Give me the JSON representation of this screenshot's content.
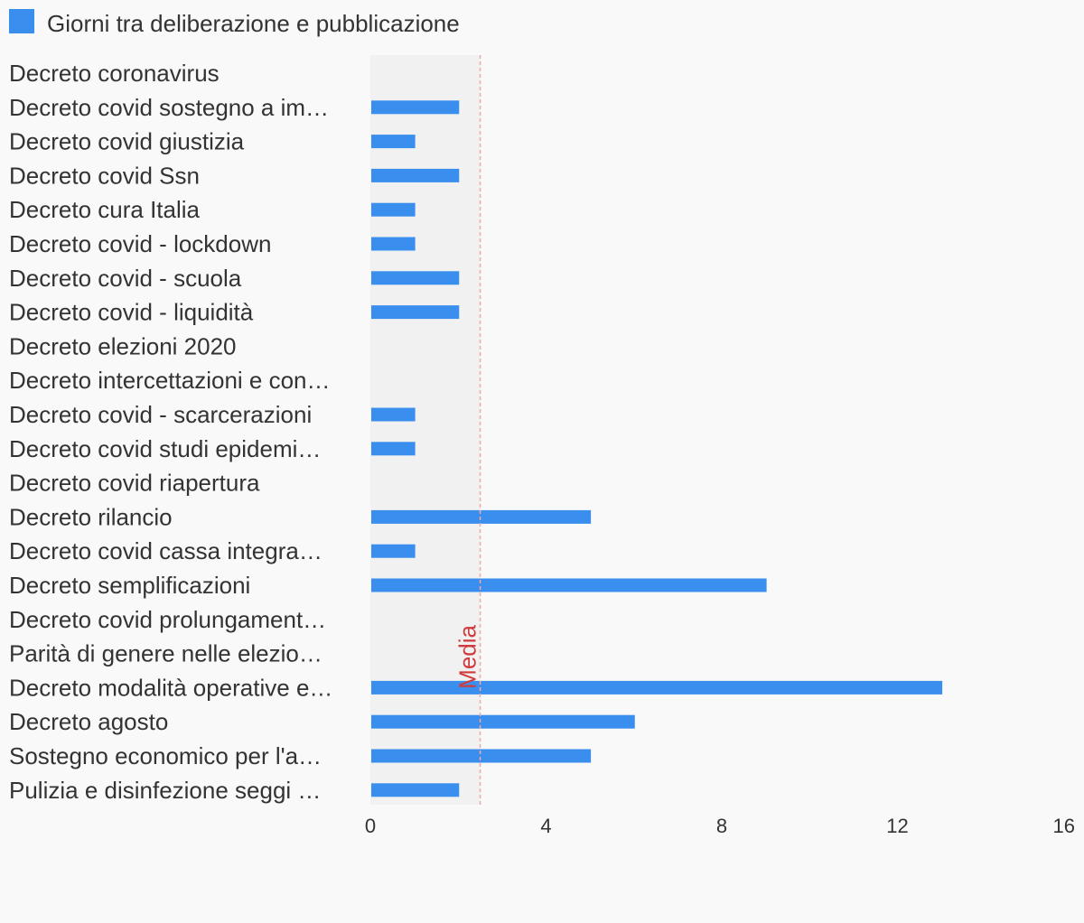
{
  "chart_data": {
    "type": "bar",
    "orientation": "horizontal",
    "categories": [
      "Decreto coronavirus",
      "Decreto covid sostegno a im…",
      "Decreto covid giustizia",
      "Decreto covid Ssn",
      "Decreto cura Italia",
      "Decreto covid - lockdown",
      "Decreto covid - scuola",
      "Decreto covid - liquidità",
      "Decreto elezioni 2020",
      "Decreto intercettazioni e con…",
      "Decreto covid - scarcerazioni",
      "Decreto covid studi epidemi…",
      "Decreto covid riapertura",
      "Decreto rilancio",
      "Decreto covid cassa integra…",
      "Decreto semplificazioni",
      "Decreto covid prolungament…",
      "Parità di genere nelle elezio…",
      "Decreto modalità operative e…",
      "Decreto agosto",
      "Sostegno economico per l'a…",
      "Pulizia e disinfezione seggi …"
    ],
    "series": [
      {
        "name": "Giorni tra deliberazione e pubblicazione",
        "color": "#3a8eed",
        "values": [
          0,
          2,
          1,
          2,
          1,
          1,
          2,
          2,
          0,
          0,
          1,
          1,
          0,
          5,
          1,
          9,
          0,
          0,
          13,
          6,
          5,
          2
        ]
      }
    ],
    "xlim": [
      0,
      16
    ],
    "xticks": [
      "0",
      "4",
      "8",
      "12",
      "16"
    ],
    "average": {
      "label": "Media",
      "value": 2.5,
      "color": "#d13a3a"
    },
    "legend_position": "top-left",
    "grid": false
  }
}
